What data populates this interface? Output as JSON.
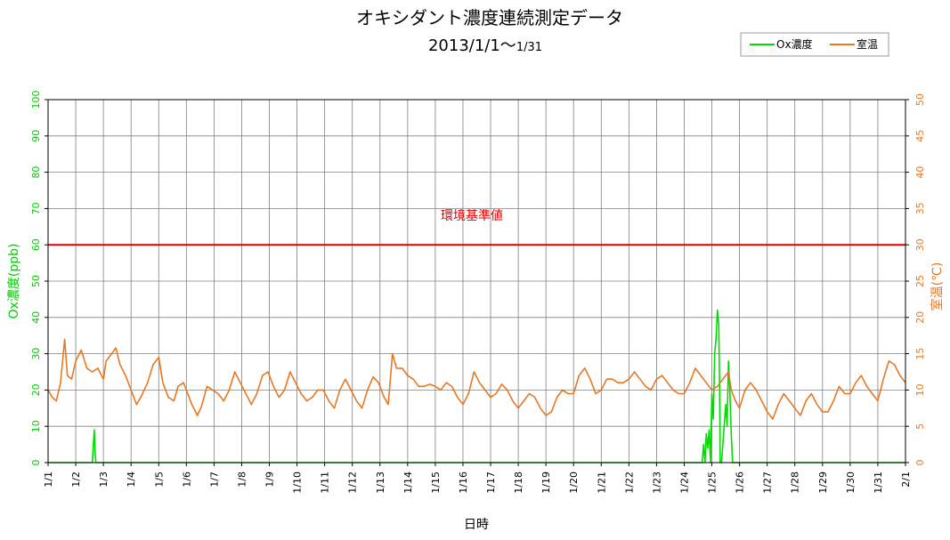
{
  "chart_data": {
    "type": "line",
    "title": "オキシダント濃度連続測定データ",
    "subtitle_main": "2013/1/1～",
    "subtitle_small": "1/31",
    "xlabel": "日時",
    "ylabel_left": "Ox濃度(ppb)",
    "ylabel_right": "室温(℃)",
    "x_ticks": [
      "1/1",
      "1/2",
      "1/3",
      "1/4",
      "1/5",
      "1/6",
      "1/7",
      "1/8",
      "1/9",
      "1/10",
      "1/11",
      "1/12",
      "1/13",
      "1/14",
      "1/15",
      "1/16",
      "1/17",
      "1/18",
      "1/19",
      "1/20",
      "1/21",
      "1/22",
      "1/23",
      "1/24",
      "1/25",
      "1/26",
      "1/27",
      "1/28",
      "1/29",
      "1/30",
      "1/31",
      "2/1"
    ],
    "xlim": [
      0,
      31
    ],
    "ylim_left": [
      0,
      100
    ],
    "ylim_right": [
      0,
      50
    ],
    "y_ticks_left": [
      0,
      10,
      20,
      30,
      40,
      50,
      60,
      70,
      80,
      90,
      100
    ],
    "y_ticks_right": [
      0,
      5,
      10,
      15,
      20,
      25,
      30,
      35,
      40,
      45,
      50
    ],
    "grid": true,
    "legend_position": "top-right",
    "reference_line": {
      "label": "環境基準値",
      "value": 60,
      "color": "#e00000"
    },
    "series": [
      {
        "name": "Ox濃度",
        "axis": "left",
        "color": "#00dd00",
        "points": [
          [
            0,
            0
          ],
          [
            1.6,
            0
          ],
          [
            1.64,
            5
          ],
          [
            1.67,
            9
          ],
          [
            1.7,
            3
          ],
          [
            1.73,
            0
          ],
          [
            23.65,
            0
          ],
          [
            23.7,
            5
          ],
          [
            23.75,
            0
          ],
          [
            23.8,
            8
          ],
          [
            23.85,
            4
          ],
          [
            23.9,
            9
          ],
          [
            23.95,
            0
          ],
          [
            24.0,
            19
          ],
          [
            24.05,
            12
          ],
          [
            24.1,
            30
          ],
          [
            24.15,
            34
          ],
          [
            24.2,
            42
          ],
          [
            24.25,
            38
          ],
          [
            24.28,
            21
          ],
          [
            24.3,
            0
          ],
          [
            24.35,
            0
          ],
          [
            24.5,
            16
          ],
          [
            24.55,
            10
          ],
          [
            24.6,
            28
          ],
          [
            24.65,
            20
          ],
          [
            24.7,
            8
          ],
          [
            24.75,
            0
          ],
          [
            31,
            0
          ]
        ]
      },
      {
        "name": "室温",
        "axis": "right",
        "color": "#e87722",
        "points": [
          [
            0,
            10
          ],
          [
            0.15,
            9
          ],
          [
            0.3,
            8.5
          ],
          [
            0.45,
            11
          ],
          [
            0.6,
            17
          ],
          [
            0.7,
            12
          ],
          [
            0.85,
            11.5
          ],
          [
            1.0,
            14
          ],
          [
            1.2,
            15.5
          ],
          [
            1.4,
            13
          ],
          [
            1.6,
            12.5
          ],
          [
            1.8,
            13
          ],
          [
            2.0,
            11.5
          ],
          [
            2.1,
            14
          ],
          [
            2.3,
            15
          ],
          [
            2.45,
            15.8
          ],
          [
            2.6,
            13.5
          ],
          [
            2.8,
            12
          ],
          [
            3.0,
            10
          ],
          [
            3.2,
            8
          ],
          [
            3.35,
            9
          ],
          [
            3.6,
            11
          ],
          [
            3.8,
            13.5
          ],
          [
            4.0,
            14.5
          ],
          [
            4.15,
            11
          ],
          [
            4.35,
            9
          ],
          [
            4.55,
            8.5
          ],
          [
            4.7,
            10.5
          ],
          [
            4.9,
            11
          ],
          [
            5.0,
            10
          ],
          [
            5.2,
            8
          ],
          [
            5.4,
            6.5
          ],
          [
            5.55,
            7.8
          ],
          [
            5.75,
            10.5
          ],
          [
            5.95,
            10
          ],
          [
            6.15,
            9.5
          ],
          [
            6.35,
            8.5
          ],
          [
            6.55,
            10
          ],
          [
            6.75,
            12.5
          ],
          [
            6.95,
            11
          ],
          [
            7.15,
            9.5
          ],
          [
            7.35,
            8
          ],
          [
            7.55,
            9.5
          ],
          [
            7.75,
            12
          ],
          [
            7.95,
            12.5
          ],
          [
            8.15,
            10.5
          ],
          [
            8.35,
            9
          ],
          [
            8.55,
            10
          ],
          [
            8.75,
            12.5
          ],
          [
            8.95,
            11
          ],
          [
            9.15,
            9.5
          ],
          [
            9.35,
            8.5
          ],
          [
            9.55,
            9
          ],
          [
            9.75,
            10
          ],
          [
            9.95,
            10
          ],
          [
            10.15,
            8.5
          ],
          [
            10.35,
            7.5
          ],
          [
            10.55,
            10
          ],
          [
            10.75,
            11.5
          ],
          [
            10.95,
            10
          ],
          [
            11.15,
            8.5
          ],
          [
            11.35,
            7.5
          ],
          [
            11.55,
            10
          ],
          [
            11.75,
            11.8
          ],
          [
            11.95,
            11
          ],
          [
            12.15,
            9
          ],
          [
            12.3,
            8
          ],
          [
            12.45,
            15
          ],
          [
            12.6,
            13
          ],
          [
            12.8,
            13
          ],
          [
            13.0,
            12
          ],
          [
            13.2,
            11.5
          ],
          [
            13.4,
            10.5
          ],
          [
            13.6,
            10.5
          ],
          [
            13.8,
            10.8
          ],
          [
            14.0,
            10.5
          ],
          [
            14.2,
            10
          ],
          [
            14.4,
            11
          ],
          [
            14.6,
            10.5
          ],
          [
            14.8,
            9
          ],
          [
            15.0,
            8
          ],
          [
            15.2,
            9.5
          ],
          [
            15.4,
            12.5
          ],
          [
            15.6,
            11
          ],
          [
            15.8,
            10
          ],
          [
            16.0,
            9
          ],
          [
            16.2,
            9.5
          ],
          [
            16.4,
            10.8
          ],
          [
            16.6,
            10
          ],
          [
            16.8,
            8.5
          ],
          [
            17.0,
            7.5
          ],
          [
            17.2,
            8.5
          ],
          [
            17.4,
            9.5
          ],
          [
            17.6,
            9
          ],
          [
            17.8,
            7.5
          ],
          [
            18.0,
            6.5
          ],
          [
            18.2,
            7
          ],
          [
            18.4,
            9
          ],
          [
            18.6,
            10
          ],
          [
            18.8,
            9.5
          ],
          [
            19.0,
            9.5
          ],
          [
            19.2,
            12
          ],
          [
            19.4,
            13
          ],
          [
            19.6,
            11.5
          ],
          [
            19.8,
            9.5
          ],
          [
            20.0,
            10
          ],
          [
            20.2,
            11.5
          ],
          [
            20.4,
            11.5
          ],
          [
            20.6,
            11
          ],
          [
            20.8,
            11
          ],
          [
            21.0,
            11.5
          ],
          [
            21.2,
            12.5
          ],
          [
            21.4,
            11.5
          ],
          [
            21.6,
            10.5
          ],
          [
            21.8,
            10
          ],
          [
            22.0,
            11.5
          ],
          [
            22.2,
            12
          ],
          [
            22.4,
            11
          ],
          [
            22.6,
            10
          ],
          [
            22.8,
            9.5
          ],
          [
            23.0,
            9.5
          ],
          [
            23.2,
            11
          ],
          [
            23.4,
            13
          ],
          [
            23.6,
            12
          ],
          [
            23.8,
            11
          ],
          [
            24.0,
            10
          ],
          [
            24.2,
            10.5
          ],
          [
            24.4,
            11.5
          ],
          [
            24.6,
            12.5
          ],
          [
            24.7,
            10
          ],
          [
            24.85,
            8.5
          ],
          [
            25.0,
            7.5
          ],
          [
            25.2,
            10
          ],
          [
            25.4,
            11
          ],
          [
            25.6,
            10
          ],
          [
            25.8,
            8.5
          ],
          [
            26.0,
            7
          ],
          [
            26.2,
            6
          ],
          [
            26.4,
            8
          ],
          [
            26.6,
            9.5
          ],
          [
            26.8,
            8.5
          ],
          [
            27.0,
            7.5
          ],
          [
            27.2,
            6.5
          ],
          [
            27.4,
            8.5
          ],
          [
            27.6,
            9.5
          ],
          [
            27.8,
            8
          ],
          [
            28.0,
            7
          ],
          [
            28.2,
            7
          ],
          [
            28.4,
            8.5
          ],
          [
            28.6,
            10.5
          ],
          [
            28.8,
            9.5
          ],
          [
            29.0,
            9.5
          ],
          [
            29.2,
            11
          ],
          [
            29.4,
            12
          ],
          [
            29.6,
            10.5
          ],
          [
            29.8,
            9.5
          ],
          [
            30.0,
            8.5
          ],
          [
            30.2,
            11.5
          ],
          [
            30.4,
            14
          ],
          [
            30.6,
            13.5
          ],
          [
            30.8,
            12
          ],
          [
            31.0,
            11
          ]
        ]
      }
    ]
  }
}
